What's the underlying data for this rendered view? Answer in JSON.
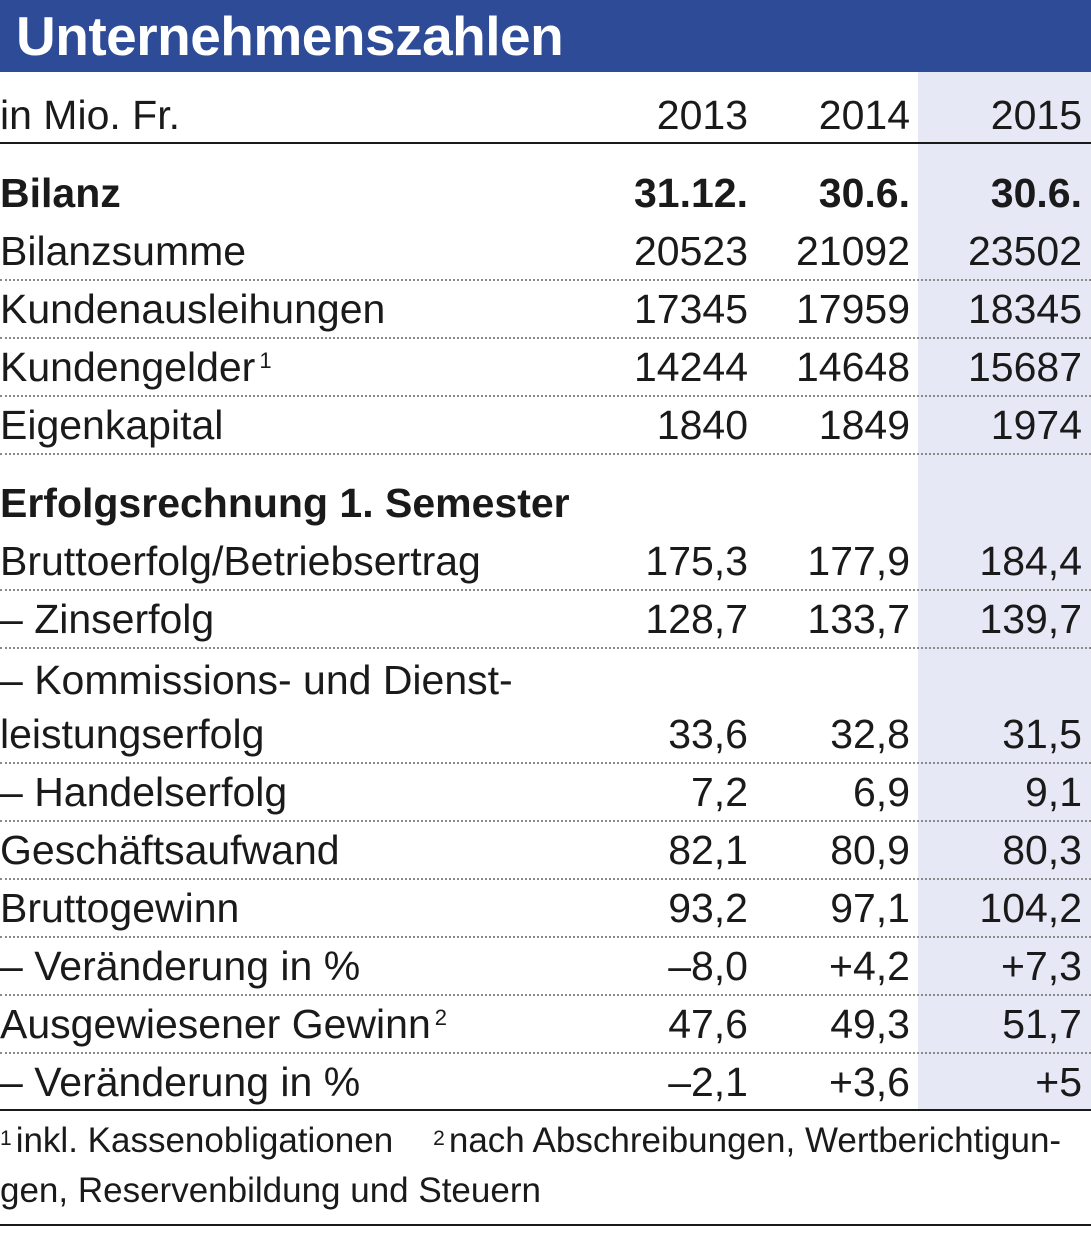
{
  "header": {
    "title": "Unternehmenszahlen"
  },
  "chart_data": {
    "type": "table",
    "title": "Unternehmenszahlen",
    "unit_label": "in Mio. Fr.",
    "columns": [
      "2013",
      "2014",
      "2015"
    ],
    "highlight_column": "2015",
    "highlight_color": "#e6e8f5",
    "header_color": "#2e4b97",
    "sections": [
      {
        "title": "Bilanz",
        "dates": [
          "31.12.",
          "30.6.",
          "30.6."
        ],
        "rows": [
          {
            "label": "Bilanzsumme",
            "values": [
              "20523",
              "21092",
              "23502"
            ]
          },
          {
            "label": "Kundenausleihungen",
            "values": [
              "17345",
              "17959",
              "18345"
            ]
          },
          {
            "label": "Kundengelder",
            "footnote": "1",
            "values": [
              "14244",
              "14648",
              "15687"
            ]
          },
          {
            "label": "Eigenkapital",
            "values": [
              "1840",
              "1849",
              "1974"
            ]
          }
        ]
      },
      {
        "title": "Erfolgsrechnung 1. Semester",
        "rows": [
          {
            "label": "Bruttoerfolg/Betriebsertrag",
            "values": [
              "175,3",
              "177,9",
              "184,4"
            ]
          },
          {
            "label": "– Zinserfolg",
            "values": [
              "128,7",
              "133,7",
              "139,7"
            ]
          },
          {
            "label": "– Kommissions- und Dienst-",
            "label_line2": "leistungserfolg",
            "values": [
              "33,6",
              "32,8",
              "31,5"
            ]
          },
          {
            "label": "– Handelserfolg",
            "values": [
              "7,2",
              "6,9",
              "9,1"
            ]
          },
          {
            "label": "Geschäftsaufwand",
            "values": [
              "82,1",
              "80,9",
              "80,3"
            ]
          },
          {
            "label": "Bruttogewinn",
            "values": [
              "93,2",
              "97,1",
              "104,2"
            ]
          },
          {
            "label": "– Veränderung in %",
            "values": [
              "–8,0",
              "+4,2",
              "+7,3"
            ]
          },
          {
            "label": "Ausgewiesener Gewinn",
            "footnote": "2",
            "values": [
              "47,6",
              "49,3",
              "51,7"
            ]
          },
          {
            "label": "– Veränderung in %",
            "values": [
              "–2,1",
              "+3,6",
              "+5"
            ]
          }
        ]
      }
    ],
    "footnotes": [
      {
        "mark": "1",
        "text": "inkl. Kassenobligationen"
      },
      {
        "mark": "2",
        "text_line1": "nach Abschreibungen, Wertberichtigun-",
        "text_line2": "gen, Reservenbildung und Steuern"
      }
    ]
  }
}
